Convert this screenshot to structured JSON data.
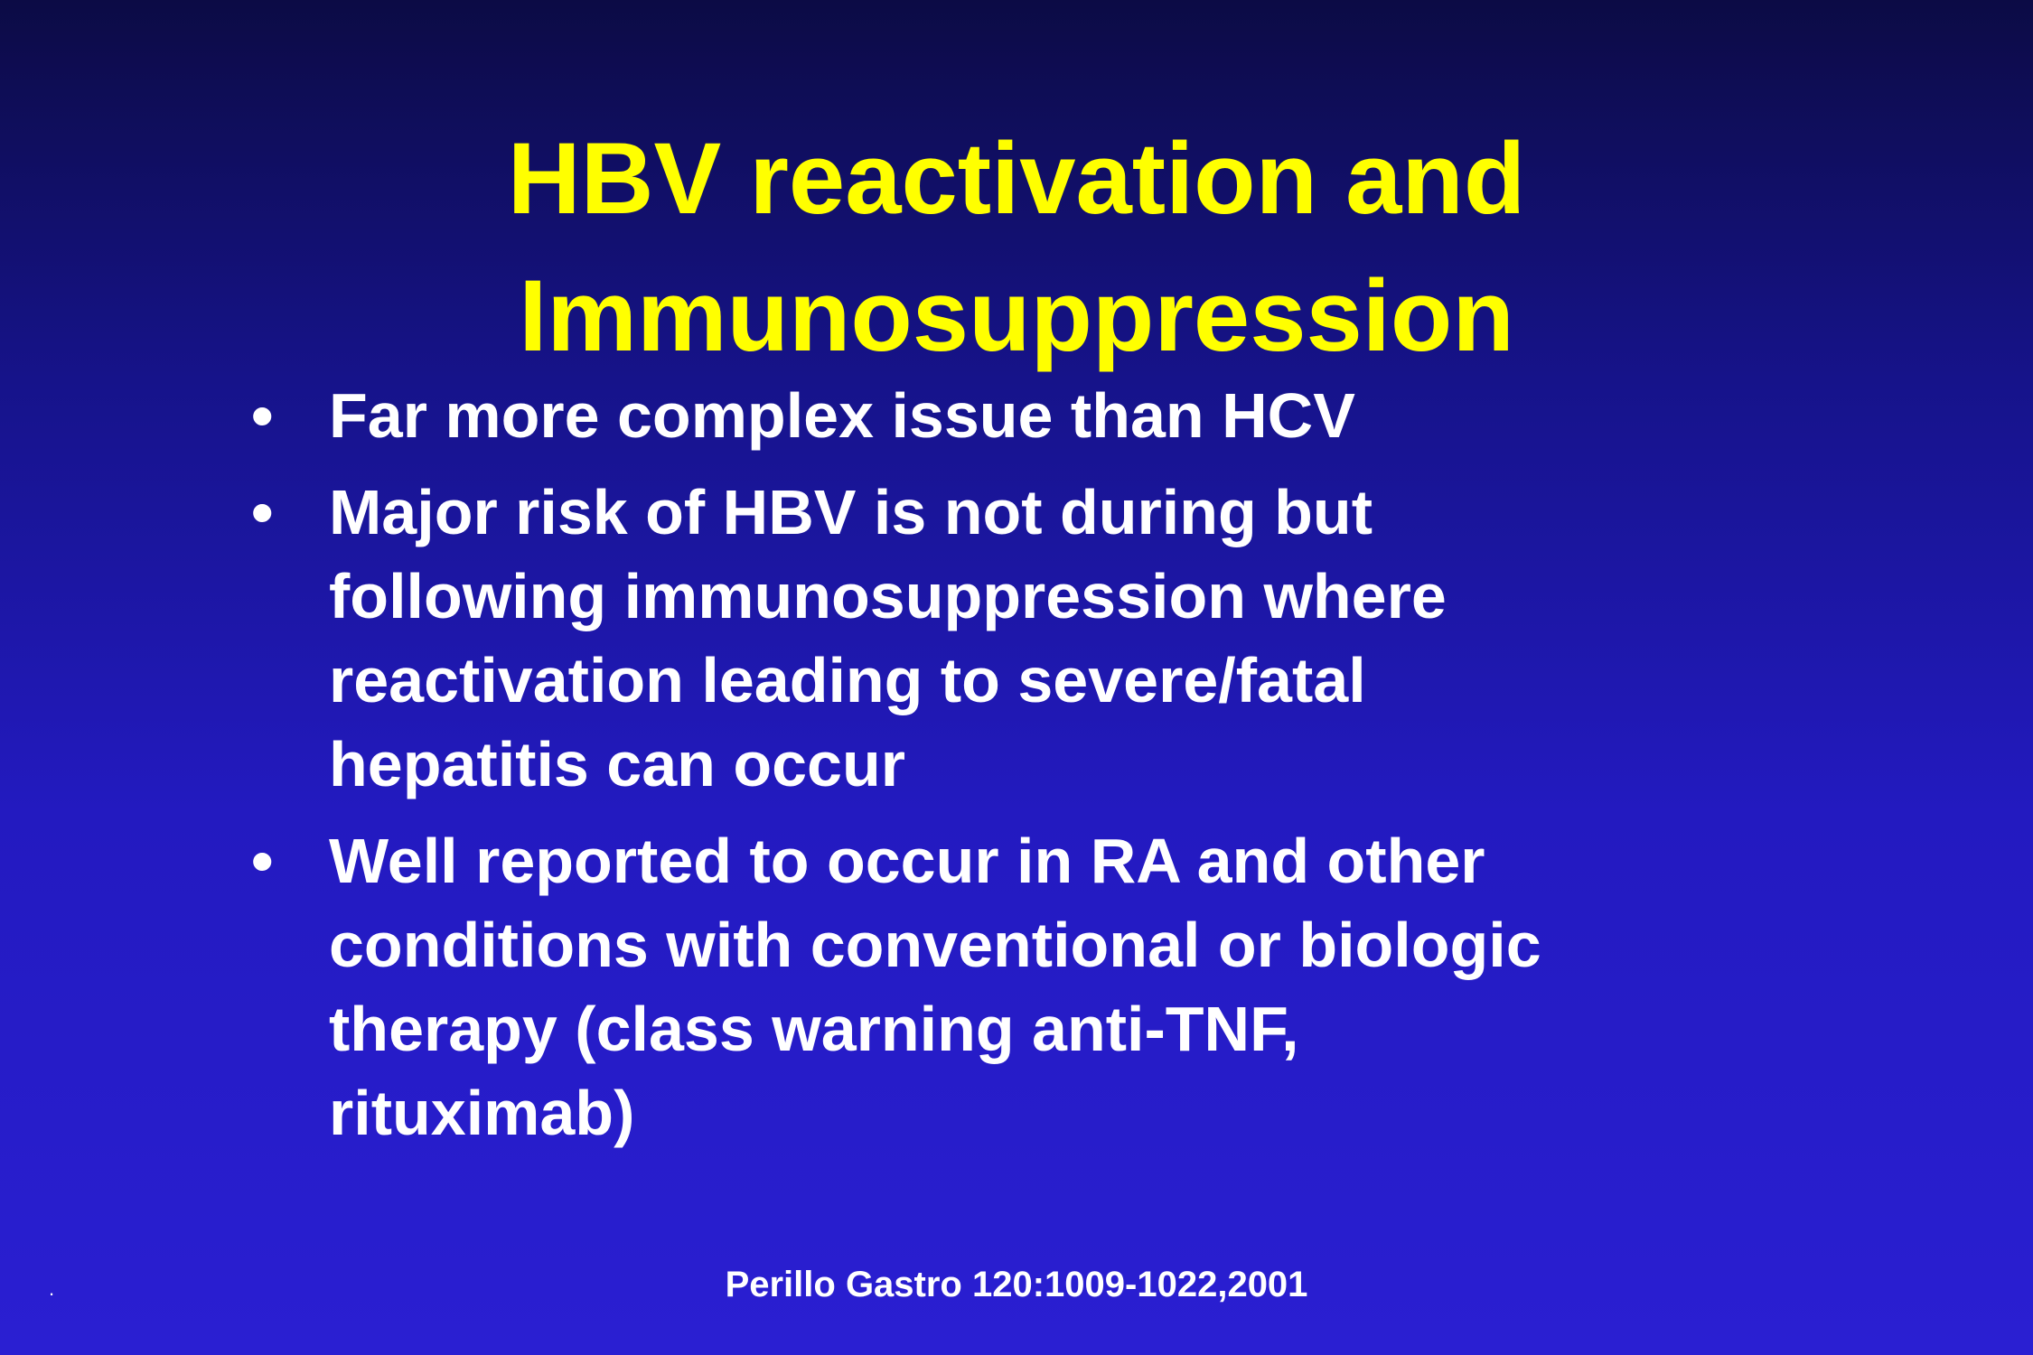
{
  "slide": {
    "title_lines": [
      "HBV reactivation and",
      "Immunosuppression"
    ],
    "bullets": [
      {
        "marker": "•",
        "lines": [
          "Far more complex issue than HCV"
        ]
      },
      {
        "marker": "•",
        "lines": [
          "Major risk of HBV is not during but",
          "following immunosuppression where",
          "reactivation leading to severe/fatal",
          "hepatitis can occur"
        ]
      },
      {
        "marker": "•",
        "lines": [
          "Well reported to occur in RA and other",
          "conditions with conventional or biologic",
          "therapy (class warning anti-TNF,",
          "rituximab)"
        ]
      }
    ],
    "citation": "Perillo Gastro 120:1009-1022,2001",
    "corner_mark": "."
  },
  "colors": {
    "title": "#ffff00",
    "text": "#ffffff",
    "background_top": "#0c0b45",
    "background_bottom": "#2a1fd2"
  }
}
